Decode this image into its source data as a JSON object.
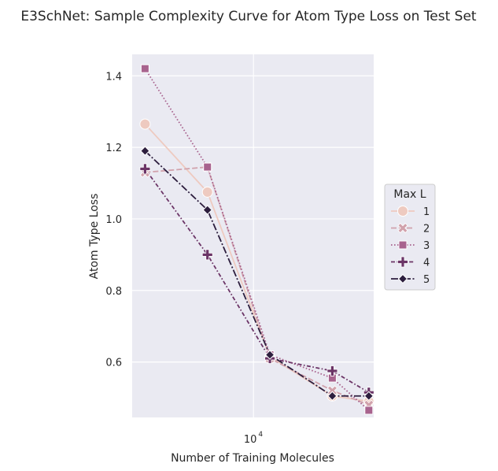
{
  "chart_data": {
    "type": "line",
    "title": "E3SchNet: Sample Complexity Curve for Atom Type Loss on Test Set",
    "xlabel": "Number of Training Molecules",
    "ylabel": "Atom Type Loss",
    "xscale": "log",
    "xlim": [
      2600,
      38000
    ],
    "ylim": [
      0.445,
      1.46
    ],
    "x": [
      3000,
      6000,
      12000,
      24000,
      36000
    ],
    "xticks": [
      {
        "value": 10000,
        "base": "10",
        "exp": "4"
      }
    ],
    "yticks": [
      {
        "value": 0.6,
        "label": "0.6"
      },
      {
        "value": 0.8,
        "label": "0.8"
      },
      {
        "value": 1.0,
        "label": "1.0"
      },
      {
        "value": 1.2,
        "label": "1.2"
      },
      {
        "value": 1.4,
        "label": "1.4"
      }
    ],
    "grid": true,
    "background": "#eaeaf2",
    "legend": {
      "title": "Max L",
      "placement": "outside-right"
    },
    "series": [
      {
        "name": "1",
        "values": [
          1.265,
          1.075,
          0.615,
          0.505,
          0.49
        ],
        "color": "#eecac0",
        "marker": "circle",
        "dash": "solid"
      },
      {
        "name": "2",
        "values": [
          1.13,
          1.145,
          0.61,
          0.52,
          0.48
        ],
        "color": "#d1a2ac",
        "marker": "x",
        "dash": "dashed"
      },
      {
        "name": "3",
        "values": [
          1.42,
          1.145,
          0.62,
          0.555,
          0.465
        ],
        "color": "#a8638e",
        "marker": "square",
        "dash": "dotted"
      },
      {
        "name": "4",
        "values": [
          1.14,
          0.9,
          0.61,
          0.575,
          0.515
        ],
        "color": "#6b3466",
        "marker": "plus",
        "dash": "dashdot"
      },
      {
        "name": "5",
        "values": [
          1.19,
          1.025,
          0.62,
          0.505,
          0.505
        ],
        "color": "#2d1e3e",
        "marker": "diamond",
        "dash": "longdashdot"
      }
    ]
  }
}
